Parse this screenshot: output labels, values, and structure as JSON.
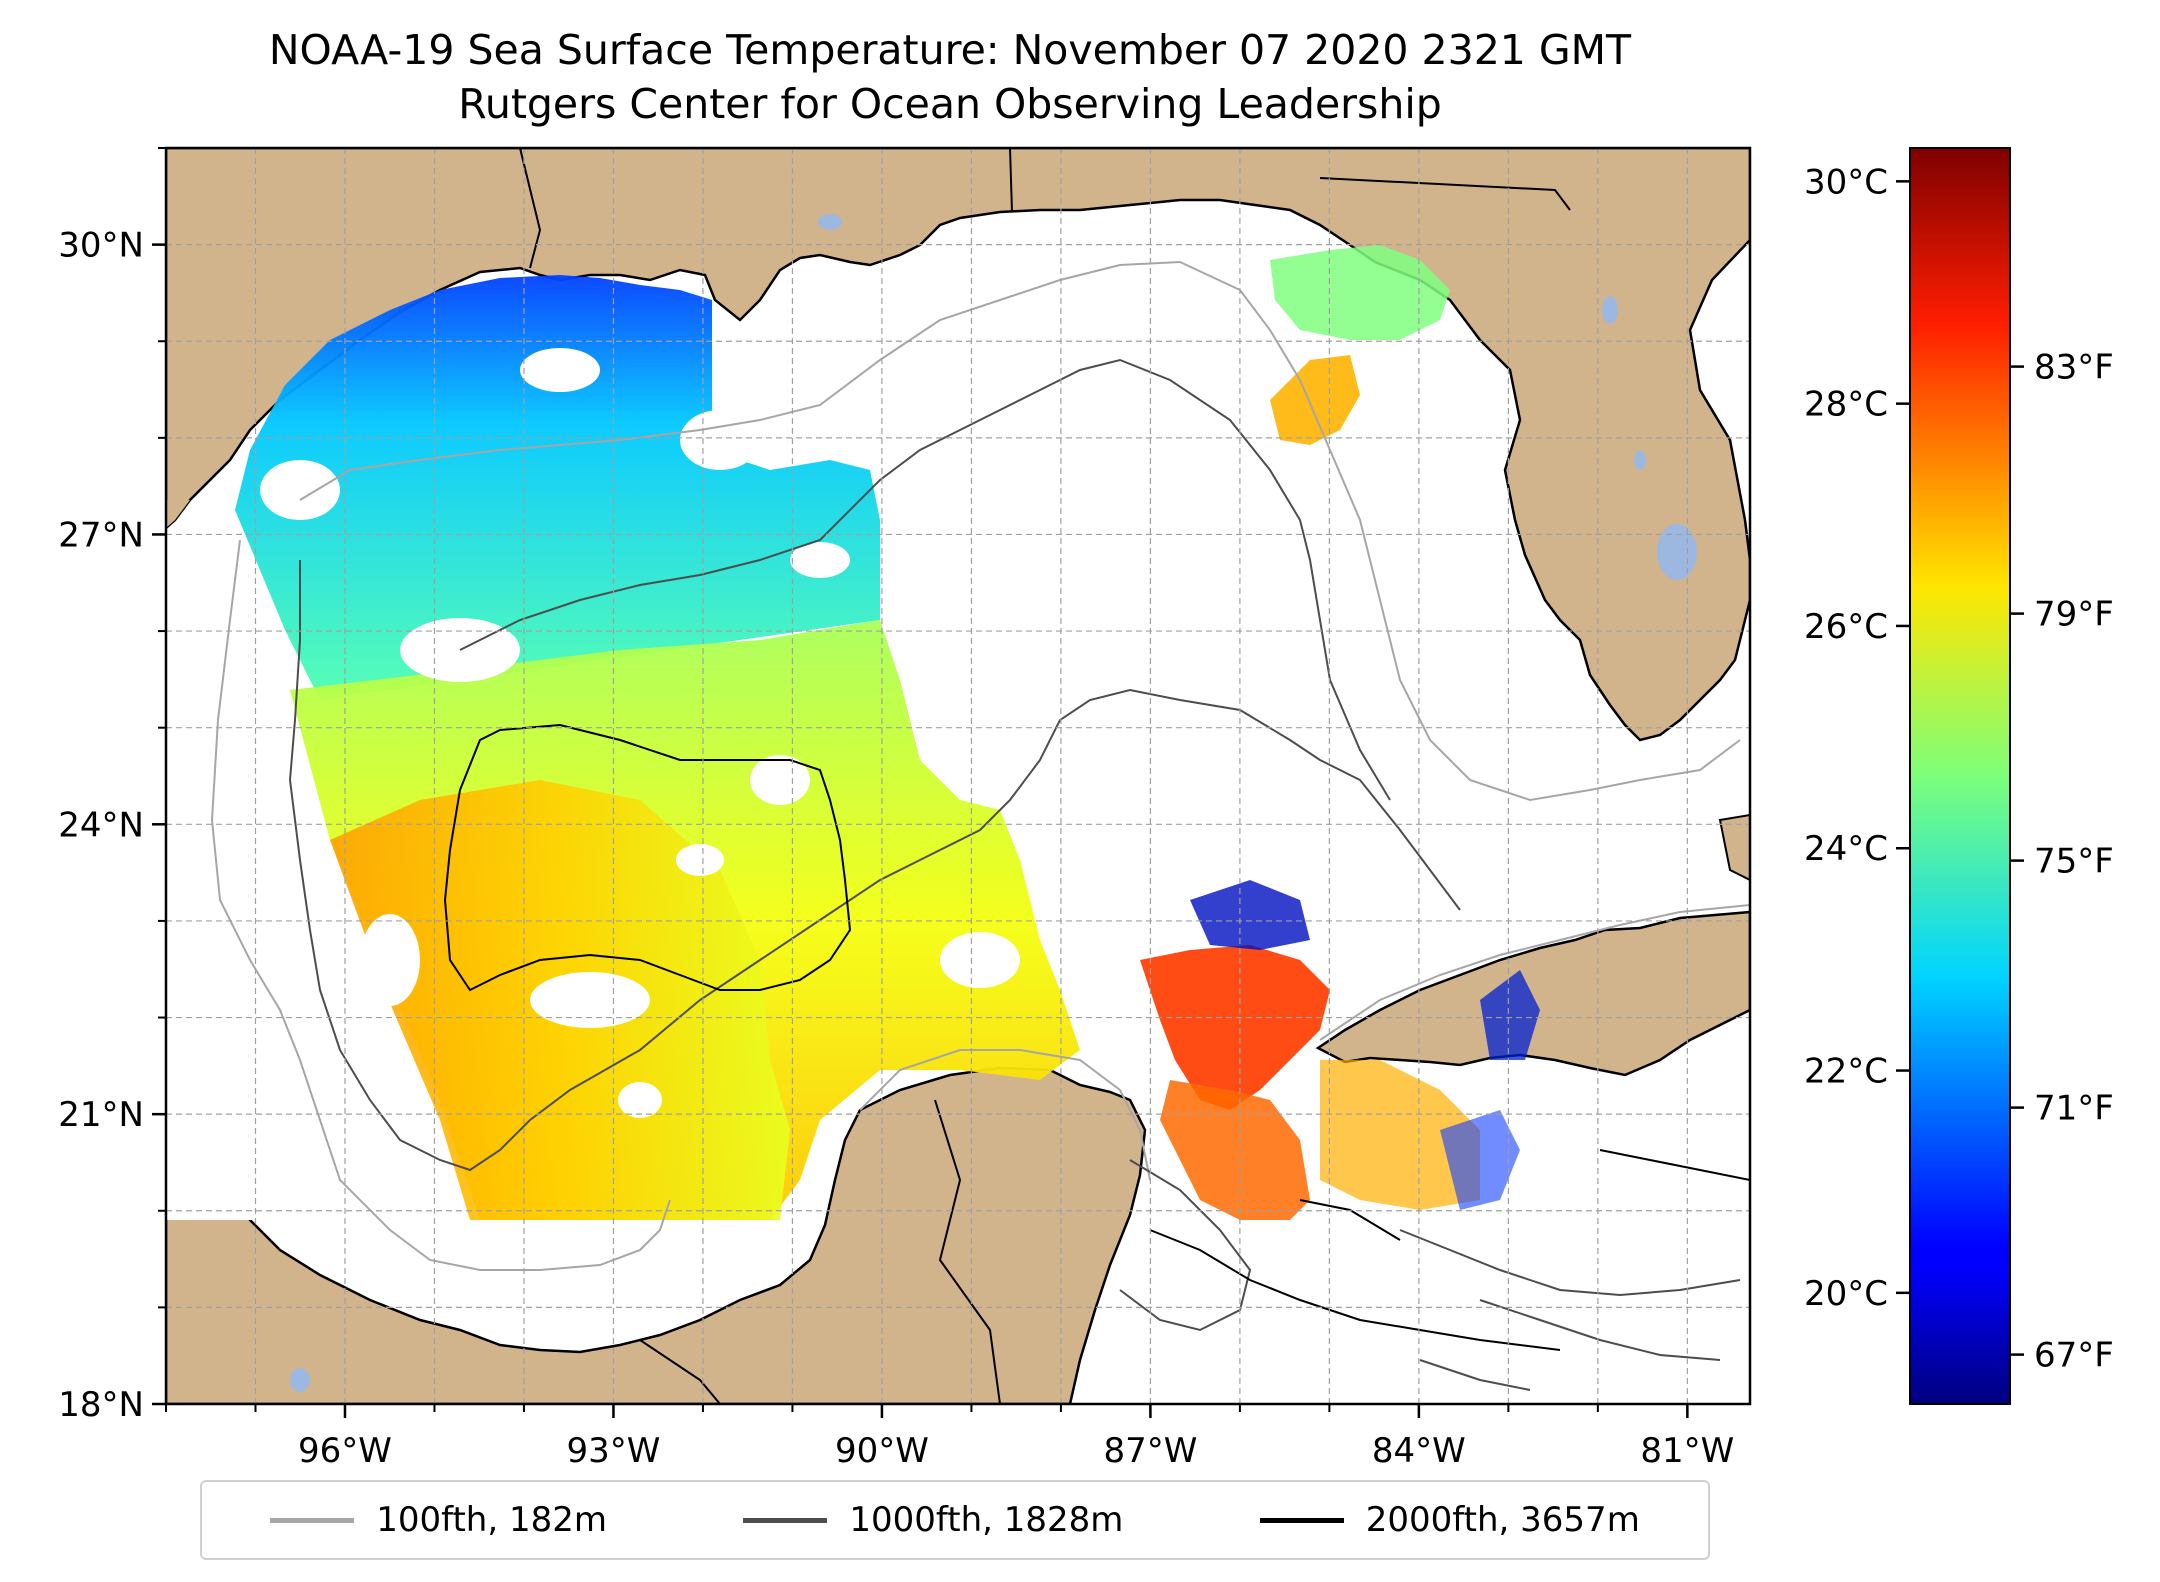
{
  "title": {
    "line1": "NOAA-19 Sea Surface Temperature: November 07 2020 2321 GMT",
    "line2": "Rutgers Center for Ocean Observing Leadership"
  },
  "map": {
    "lon_range": [
      -98,
      -80.3
    ],
    "lat_range": [
      18,
      31
    ],
    "lon_ticks": [
      {
        "value": -96,
        "label": "96°W"
      },
      {
        "value": -93,
        "label": "93°W"
      },
      {
        "value": -90,
        "label": "90°W"
      },
      {
        "value": -87,
        "label": "87°W"
      },
      {
        "value": -84,
        "label": "84°W"
      },
      {
        "value": -81,
        "label": "81°W"
      }
    ],
    "lat_ticks": [
      {
        "value": 30,
        "label": "30°N"
      },
      {
        "value": 27,
        "label": "27°N"
      },
      {
        "value": 24,
        "label": "24°N"
      },
      {
        "value": 21,
        "label": "21°N"
      },
      {
        "value": 18,
        "label": "18°N"
      }
    ],
    "land_color": "#d2b48c",
    "water_color": "#ffffff",
    "lake_color": "#9db8e0"
  },
  "colorbar": {
    "colormap": "jet",
    "range_c": [
      19,
      30.3
    ],
    "celsius_ticks": [
      {
        "value": 30,
        "label": "30°C"
      },
      {
        "value": 28,
        "label": "28°C"
      },
      {
        "value": 26,
        "label": "26°C"
      },
      {
        "value": 24,
        "label": "24°C"
      },
      {
        "value": 22,
        "label": "22°C"
      },
      {
        "value": 20,
        "label": "20°C"
      }
    ],
    "fahrenheit_ticks": [
      {
        "value": 83,
        "label": "83°F"
      },
      {
        "value": 79,
        "label": "79°F"
      },
      {
        "value": 75,
        "label": "75°F"
      },
      {
        "value": 71,
        "label": "71°F"
      },
      {
        "value": 67,
        "label": "67°F"
      }
    ]
  },
  "legend": {
    "items": [
      {
        "label": "100fth, 182m",
        "color": "#a6a6a6"
      },
      {
        "label": "1000fth, 1828m",
        "color": "#4d4d4d"
      },
      {
        "label": "2000fth, 3657m",
        "color": "#000000"
      }
    ]
  }
}
